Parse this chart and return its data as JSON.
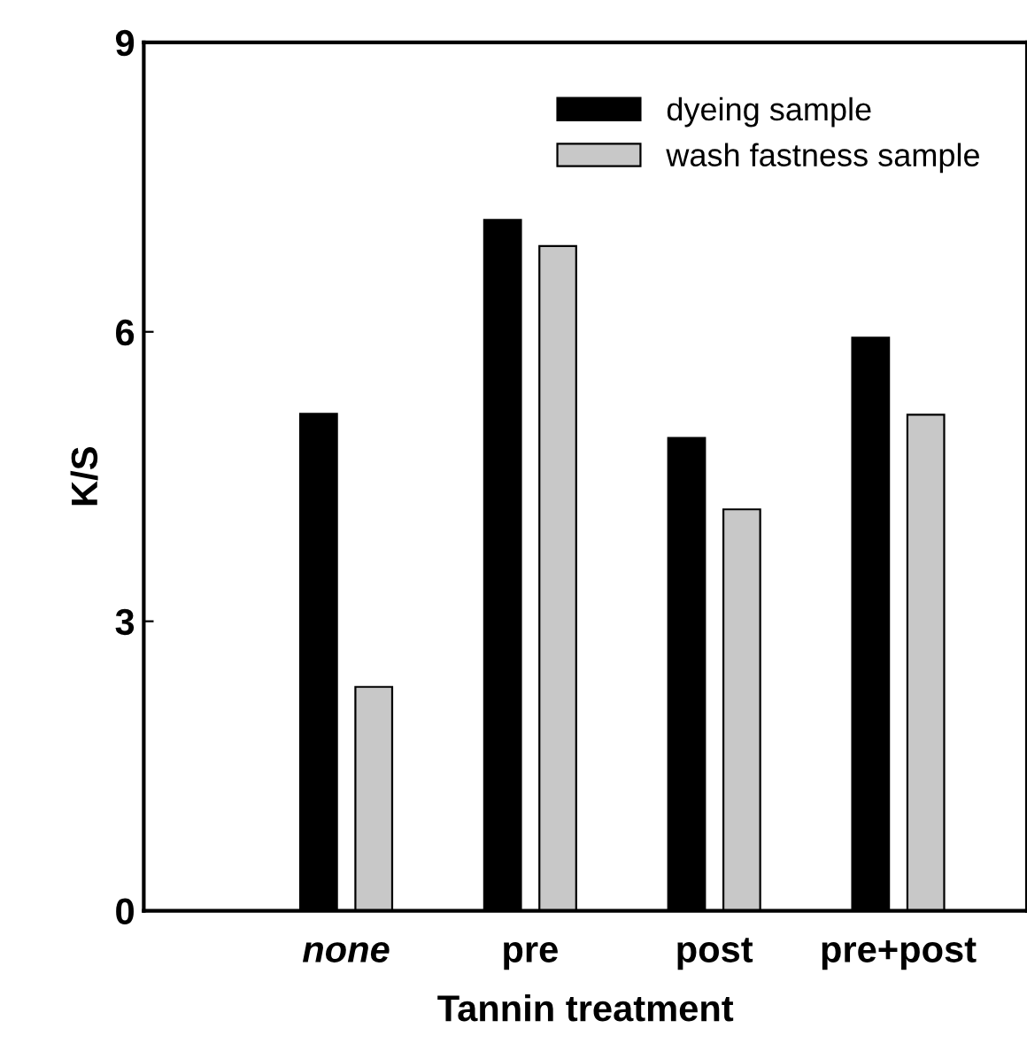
{
  "chart_data": {
    "type": "bar",
    "xlabel": "Tannin treatment",
    "ylabel": "K/S",
    "categories": [
      "none",
      "pre",
      "post",
      "pre+post"
    ],
    "series": [
      {
        "name": "dyeing sample",
        "color": "#000000",
        "values": [
          5.15,
          7.16,
          4.9,
          5.94
        ]
      },
      {
        "name": "wash fastness sample",
        "color": "#c8c8c8",
        "values": [
          2.32,
          6.89,
          4.16,
          5.14
        ]
      }
    ],
    "ylim": [
      0,
      9
    ],
    "yticks": [
      0,
      3,
      6,
      9
    ],
    "grid": false,
    "legend": "top right"
  }
}
